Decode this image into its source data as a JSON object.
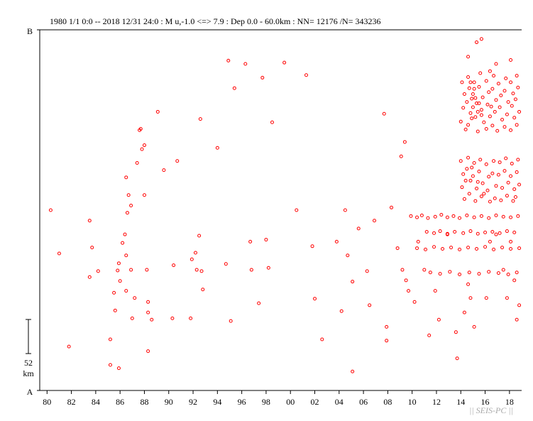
{
  "chart_data": {
    "type": "scatter",
    "title": "1980 1/1 0:0 -- 2018 12/31 24:0  : M u,-1.0 <=> 7.9   :  Dep 0.0 - 60.0km :  NN= 12176 /N= 343236",
    "color": "#ff0000",
    "xlim": [
      1979.4,
      2019
    ],
    "ylim": [
      0,
      550
    ],
    "xticks": [
      {
        "value": 1980,
        "label": "80"
      },
      {
        "value": 1982,
        "label": "82"
      },
      {
        "value": 1984,
        "label": "84"
      },
      {
        "value": 1986,
        "label": "86"
      },
      {
        "value": 1988,
        "label": "88"
      },
      {
        "value": 1990,
        "label": "90"
      },
      {
        "value": 1992,
        "label": "92"
      },
      {
        "value": 1994,
        "label": "94"
      },
      {
        "value": 1996,
        "label": "96"
      },
      {
        "value": 1998,
        "label": "98"
      },
      {
        "value": 2000,
        "label": "00"
      },
      {
        "value": 2002,
        "label": "02"
      },
      {
        "value": 2004,
        "label": "04"
      },
      {
        "value": 2006,
        "label": "06"
      },
      {
        "value": 2008,
        "label": "08"
      },
      {
        "value": 2010,
        "label": "10"
      },
      {
        "value": 2012,
        "label": "12"
      },
      {
        "value": 2014,
        "label": "14"
      },
      {
        "value": 2016,
        "label": "16"
      },
      {
        "value": 2018,
        "label": "18"
      }
    ],
    "yticks": [
      {
        "value": 0,
        "label": "A"
      },
      {
        "value": 550,
        "label": "B"
      }
    ],
    "scale_bar": {
      "length": 52,
      "unit": "km"
    },
    "x": [
      1980.3,
      1981.0,
      1981.8,
      1983.5,
      1983.7,
      1983.5,
      1984.2,
      1985.2,
      1985.2,
      1985.9,
      1985.5,
      1985.6,
      1985.8,
      1985.9,
      1986.0,
      1986.2,
      1986.4,
      1986.5,
      1986.5,
      1986.6,
      1986.5,
      1986.7,
      1986.9,
      1986.9,
      1987.0,
      1987.2,
      1987.4,
      1987.6,
      1987.7,
      1987.8,
      1988.0,
      1988.0,
      1988.2,
      1988.3,
      1988.3,
      1988.3,
      1988.6,
      1989.1,
      1989.6,
      1990.3,
      1990.4,
      1990.7,
      1991.8,
      1991.9,
      1992.2,
      1992.3,
      1992.5,
      1992.6,
      1992.8,
      1992.7,
      1994.0,
      1994.7,
      1994.9,
      1995.1,
      1995.4,
      1996.3,
      1996.7,
      1996.8,
      1997.4,
      1997.7,
      1998.0,
      1998.2,
      1998.5,
      1999.5,
      2000.5,
      2001.3,
      2001.8,
      2002.0,
      2002.6,
      2003.8,
      2004.2,
      2004.5,
      2004.7,
      2005.1,
      2005.1,
      2005.6,
      2006.3,
      2006.5,
      2006.9,
      2007.7,
      2007.9,
      2007.9,
      2008.3,
      2008.8,
      2009.1,
      2009.2,
      2009.4,
      2009.5,
      2009.7,
      2010.2,
      2010.5,
      2011.0,
      2011.4,
      2011.9,
      2012.2,
      2012.9,
      2013.6,
      2013.7,
      2014.3,
      2014.6,
      2014.8,
      2015.1,
      2015.3,
      2015.7,
      2016.1,
      2017.5,
      2017.8,
      2018.4,
      2018.6,
      2018.8,
      2016.9,
      2018.1,
      2016.4,
      2018.1,
      2016.9,
      2014.6,
      2016.4,
      2014.1,
      2014.3,
      2014.2,
      2014.0,
      2014.4,
      2014.6,
      2014.7,
      2014.9,
      2014.8,
      2014.6,
      2015.1,
      2015.0,
      2015.3,
      2015.2,
      2015.4,
      2015.6,
      2015.5,
      2015.8,
      2015.7,
      2015.9,
      2016.1,
      2016.3,
      2016.2,
      2016.4,
      2016.1,
      2016.7,
      2016.6,
      2016.9,
      2016.8,
      2016.6,
      2017.1,
      2017.3,
      2017.2,
      2017.4,
      2017.0,
      2017.7,
      2017.6,
      2017.9,
      2017.8,
      2017.6,
      2018.1,
      2018.3,
      2018.2,
      2018.4,
      2018.1,
      2018.6,
      2018.7,
      2018.5,
      2018.8,
      2018.6,
      2014.5,
      2015.4,
      2015.0,
      2015.2,
      2014.9,
      2015.5,
      2016.5,
      2015.7,
      2015.1,
      2014.8,
      2014.0,
      2014.2,
      2014.1,
      2014.3,
      2014.6,
      2014.5,
      2014.8,
      2014.7,
      2015.1,
      2015.0,
      2015.3,
      2015.2,
      2015.6,
      2015.5,
      2015.8,
      2015.7,
      2016.1,
      2016.3,
      2016.2,
      2016.4,
      2016.7,
      2016.6,
      2016.9,
      2016.8,
      2017.2,
      2017.1,
      2017.4,
      2017.3,
      2017.7,
      2017.6,
      2017.9,
      2017.8,
      2018.2,
      2018.1,
      2018.4,
      2018.3,
      2018.7,
      2018.6,
      2018.8,
      2018.5,
      2014.4,
      2015.4,
      2014.9,
      2015.9,
      2009.9,
      2010.4,
      2010.8,
      2011.3,
      2011.9,
      2012.4,
      2012.9,
      2013.4,
      2013.9,
      2014.5,
      2015.1,
      2015.7,
      2016.3,
      2016.9,
      2017.5,
      2018.1,
      2018.7,
      2011.2,
      2011.8,
      2012.3,
      2012.9,
      2013.5,
      2014.2,
      2014.8,
      2015.4,
      2016.0,
      2016.6,
      2017.2,
      2017.8,
      2018.4,
      2010.4,
      2011.1,
      2011.8,
      2012.5,
      2013.2,
      2013.9,
      2014.6,
      2015.3,
      2016.0,
      2016.7,
      2017.4,
      2018.1,
      2018.8,
      2011.5,
      2012.3,
      2013.1,
      2013.9,
      2014.7,
      2015.5,
      2016.3,
      2017.1,
      2017.9,
      2018.6
    ],
    "values": [
      275,
      209,
      67,
      259,
      218,
      173,
      182,
      78,
      39,
      34,
      149,
      122,
      183,
      194,
      167,
      225,
      238,
      206,
      152,
      271,
      325,
      298,
      282,
      184,
      110,
      141,
      347,
      397,
      399,
      368,
      374,
      298,
      184,
      135,
      60,
      119,
      108,
      425,
      336,
      110,
      191,
      350,
      110,
      200,
      210,
      184,
      236,
      414,
      154,
      182,
      370,
      193,
      503,
      106,
      461,
      498,
      227,
      184,
      133,
      477,
      230,
      187,
      409,
      500,
      275,
      481,
      220,
      140,
      78,
      227,
      121,
      275,
      206,
      29,
      166,
      247,
      182,
      130,
      259,
      422,
      76,
      97,
      279,
      217,
      357,
      184,
      379,
      168,
      152,
      135,
      227,
      184,
      84,
      152,
      108,
      238,
      89,
      49,
      119,
      162,
      141,
      97,
      531,
      536,
      141,
      184,
      141,
      168,
      108,
      130,
      238,
      227,
      227,
      504,
      498,
      509,
      487,
      470,
      452,
      431,
      410,
      398,
      478,
      461,
      445,
      423,
      405,
      470,
      452,
      438,
      417,
      395,
      484,
      463,
      447,
      428,
      409,
      472,
      455,
      436,
      418,
      399,
      480,
      460,
      443,
      425,
      404,
      468,
      450,
      432,
      413,
      396,
      476,
      457,
      440,
      421,
      402,
      470,
      453,
      434,
      416,
      397,
      480,
      462,
      444,
      425,
      405,
      440,
      425,
      432,
      446,
      415,
      438,
      433,
      420,
      460,
      470,
      350,
      330,
      310,
      292,
      355,
      338,
      320,
      300,
      347,
      327,
      308,
      289,
      352,
      334,
      316,
      296,
      345,
      326,
      305,
      288,
      350,
      331,
      312,
      293,
      348,
      329,
      309,
      290,
      354,
      335,
      317,
      297,
      346,
      327,
      307,
      289,
      352,
      333,
      314,
      295,
      320,
      318,
      340,
      300,
      266,
      264,
      267,
      263,
      265,
      268,
      264,
      266,
      263,
      267,
      264,
      266,
      263,
      267,
      265,
      264,
      266,
      242,
      240,
      243,
      239,
      242,
      240,
      243,
      239,
      241,
      242,
      240,
      243,
      241,
      217,
      215,
      219,
      216,
      218,
      215,
      218,
      216,
      219,
      215,
      218,
      216,
      217,
      180,
      178,
      181,
      177,
      180,
      178,
      181,
      179,
      177,
      180
    ]
  },
  "watermark": "|| SEIS-PC ||"
}
